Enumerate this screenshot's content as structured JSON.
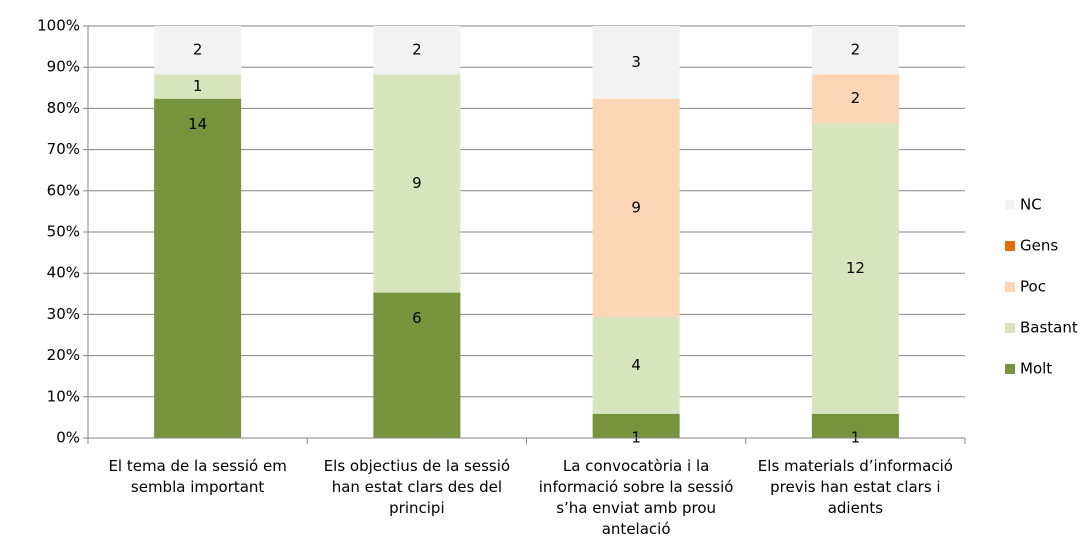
{
  "chart_data": {
    "type": "bar",
    "stacking": "percent",
    "categories": [
      "El tema de la sessió em sembla important",
      "Els objectius de la sessió han estat clars des del principi",
      "La convocatòria i la informació sobre la sessió s’ha enviat amb prou antelació",
      "Els materials d’informació previs han estat clars i adients"
    ],
    "series": [
      {
        "name": "Molt",
        "color": "#77933c",
        "values": [
          14,
          6,
          1,
          1
        ],
        "label_position": "inside_end"
      },
      {
        "name": "Bastant",
        "color": "#d7e4bd",
        "values": [
          1,
          9,
          4,
          12
        ]
      },
      {
        "name": "Poc",
        "color": "#fcd5b5",
        "values": [
          0,
          0,
          9,
          2
        ]
      },
      {
        "name": "Gens",
        "color": "#e46c0a",
        "values": [
          0,
          0,
          0,
          0
        ]
      },
      {
        "name": "NC",
        "color": "#f2f2f2",
        "values": [
          2,
          2,
          3,
          2
        ]
      }
    ],
    "ylim": [
      0,
      100
    ],
    "yticks": [
      {
        "value": 0,
        "label": "0%"
      },
      {
        "value": 10,
        "label": "10%"
      },
      {
        "value": 20,
        "label": "20%"
      },
      {
        "value": 30,
        "label": "30%"
      },
      {
        "value": 40,
        "label": "40%"
      },
      {
        "value": 50,
        "label": "50%"
      },
      {
        "value": 60,
        "label": "60%"
      },
      {
        "value": 70,
        "label": "70%"
      },
      {
        "value": 80,
        "label": "80%"
      },
      {
        "value": 90,
        "label": "90%"
      },
      {
        "value": 100,
        "label": "100%"
      }
    ],
    "grid": true,
    "legend": "right"
  }
}
